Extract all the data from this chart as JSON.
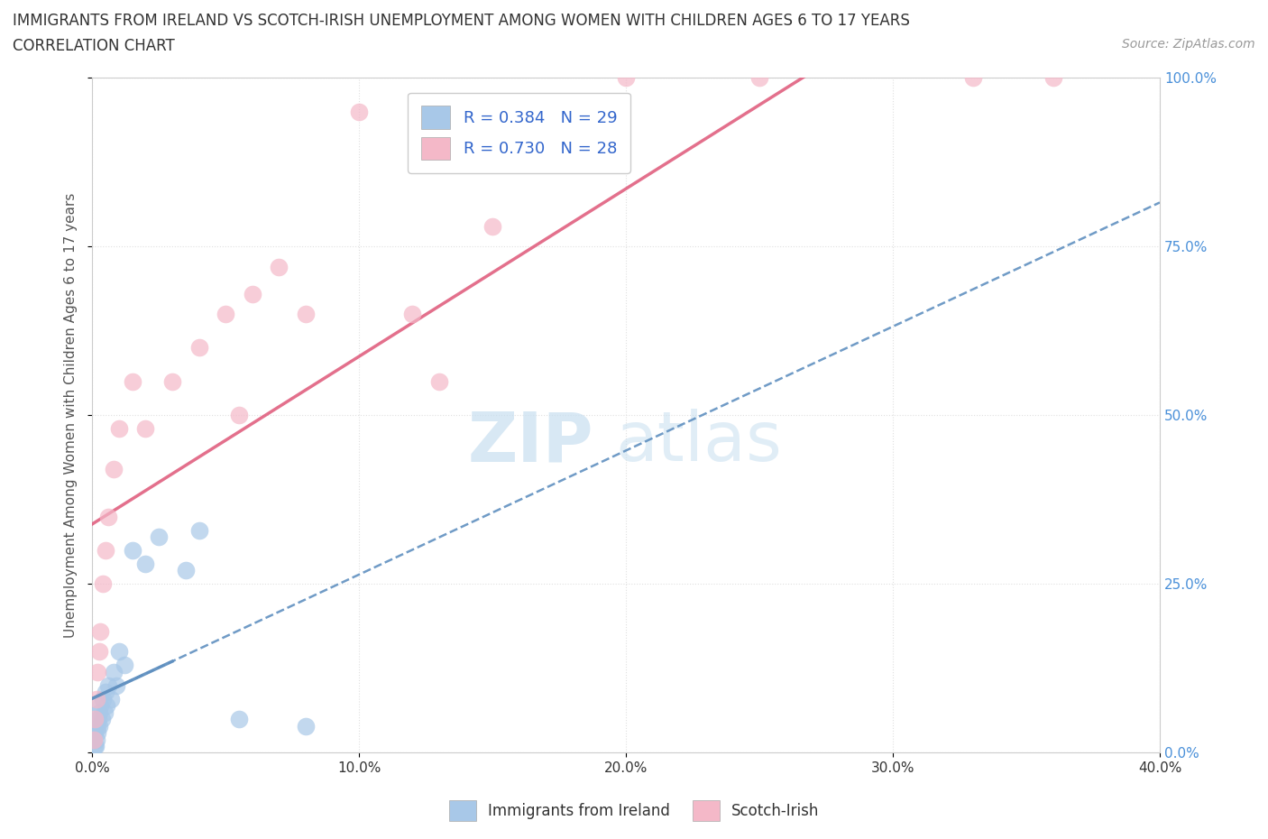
{
  "title_line1": "IMMIGRANTS FROM IRELAND VS SCOTCH-IRISH UNEMPLOYMENT AMONG WOMEN WITH CHILDREN AGES 6 TO 17 YEARS",
  "title_line2": "CORRELATION CHART",
  "source": "Source: ZipAtlas.com",
  "xlim": [
    0.0,
    40.0
  ],
  "ylim": [
    0.0,
    100.0
  ],
  "ylabel": "Unemployment Among Women with Children Ages 6 to 17 years",
  "ireland_color": "#a8c8e8",
  "scotch_color": "#f4b8c8",
  "ireland_line_color": "#6090c0",
  "scotch_line_color": "#e06080",
  "ireland_R": 0.384,
  "ireland_N": 29,
  "scotch_R": 0.73,
  "scotch_N": 28,
  "legend_label1": "Immigrants from Ireland",
  "legend_label2": "Scotch-Irish",
  "watermark_zip": "ZIP",
  "watermark_atlas": "atlas",
  "watermark_color": "#c8dff0",
  "background_color": "#ffffff",
  "grid_color": "#e0e0e0",
  "ytick_color": "#4a90d9",
  "xtick_color": "#333333",
  "ireland_x": [
    0.05,
    0.08,
    0.1,
    0.12,
    0.15,
    0.18,
    0.2,
    0.22,
    0.25,
    0.28,
    0.3,
    0.35,
    0.4,
    0.45,
    0.5,
    0.55,
    0.6,
    0.7,
    0.8,
    0.9,
    1.0,
    1.2,
    1.5,
    2.0,
    2.5,
    3.5,
    4.0,
    5.5,
    8.0
  ],
  "ireland_y": [
    2,
    1,
    3,
    1,
    2,
    4,
    3,
    5,
    6,
    4,
    7,
    5,
    8,
    6,
    9,
    7,
    10,
    8,
    12,
    10,
    15,
    13,
    30,
    28,
    32,
    27,
    33,
    5,
    4
  ],
  "scotch_x": [
    0.05,
    0.1,
    0.15,
    0.2,
    0.25,
    0.3,
    0.4,
    0.5,
    0.6,
    0.8,
    1.0,
    1.5,
    2.0,
    3.0,
    4.0,
    5.0,
    5.5,
    6.0,
    7.0,
    8.0,
    10.0,
    12.0,
    13.0,
    15.0,
    20.0,
    25.0,
    33.0,
    36.0
  ],
  "scotch_y": [
    2,
    5,
    8,
    12,
    15,
    18,
    25,
    30,
    35,
    42,
    48,
    55,
    48,
    55,
    60,
    65,
    50,
    68,
    72,
    65,
    95,
    65,
    55,
    78,
    100,
    100,
    100,
    100
  ]
}
